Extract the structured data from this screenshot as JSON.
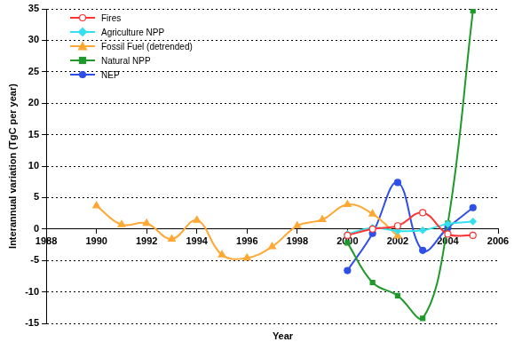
{
  "chart_data": {
    "type": "line",
    "x_label": "Year",
    "y_label": "Interannual variation (TgC per year)",
    "x": [
      1990,
      1991,
      1992,
      1993,
      1994,
      1995,
      1996,
      1997,
      1998,
      1999,
      2000,
      2001,
      2002,
      2003,
      2004,
      2005
    ],
    "series": [
      {
        "name": "Fires",
        "color": "#ff3333",
        "marker": "open_circle",
        "values": [
          null,
          null,
          null,
          null,
          null,
          null,
          null,
          null,
          null,
          null,
          -1.0,
          0.0,
          0.5,
          2.6,
          -0.8,
          -1.0
        ]
      },
      {
        "name": "Agriculture NPP",
        "color": "#33e0f0",
        "marker": "diamond",
        "values": [
          null,
          null,
          null,
          null,
          null,
          null,
          null,
          null,
          null,
          null,
          -0.8,
          0.2,
          -0.3,
          -0.2,
          0.8,
          1.2
        ]
      },
      {
        "name": "Fossil Fuel (detrended)",
        "color": "#ffa833",
        "marker": "triangle",
        "values": [
          3.7,
          0.7,
          0.9,
          -1.6,
          1.4,
          -4.1,
          -4.6,
          -2.8,
          0.5,
          1.5,
          3.9,
          2.4,
          -1.1,
          null,
          null,
          null
        ]
      },
      {
        "name": "Natural NPP",
        "color": "#1f9a2a",
        "marker": "square",
        "values": [
          null,
          null,
          null,
          null,
          null,
          null,
          null,
          null,
          null,
          null,
          -2.2,
          -8.5,
          -10.6,
          -14.2,
          0.9,
          34.7
        ]
      },
      {
        "name": "NEP",
        "color": "#2e4fe8",
        "marker": "circle",
        "values": [
          null,
          null,
          null,
          null,
          null,
          null,
          null,
          null,
          null,
          null,
          -6.6,
          -0.7,
          7.4,
          -3.4,
          0.2,
          3.4
        ]
      }
    ],
    "xlim": [
      1988,
      2006
    ],
    "xticks": [
      1988,
      1990,
      1992,
      1994,
      1996,
      1998,
      2000,
      2002,
      2004,
      2006
    ],
    "ylim": [
      -15,
      35
    ],
    "yticks": [
      -15,
      -10,
      -5,
      0,
      5,
      10,
      15,
      20,
      25,
      30,
      35
    ],
    "grid": true,
    "legend": "top-left"
  }
}
